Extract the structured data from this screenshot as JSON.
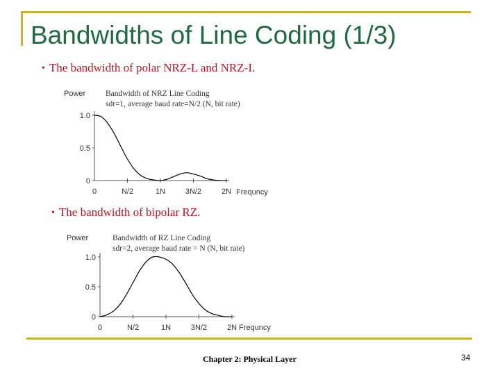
{
  "slide": {
    "title": "Bandwidths of Line Coding (1/3)",
    "bullet1": "The bandwidth of polar NRZ-L and NRZ-I.",
    "bullet2": "The bandwidth of bipolar RZ.",
    "footer": "Chapter 2: Physical Layer",
    "page_number": "34",
    "accent_color": "#c9b037",
    "title_color": "#1f6b3f",
    "bullet_color": "#c0141b"
  },
  "chart_data": [
    {
      "type": "line",
      "title": "Bandwidth of NRZ Line Coding",
      "subtitle": "sdr=1, average baud rate=N/2 (N, bit rate)",
      "ylabel": "Power",
      "xlabel": "Frequncy",
      "x_ticks": [
        "0",
        "N/2",
        "1N",
        "3N/2",
        "2N"
      ],
      "y_ticks": [
        "0",
        "0.5",
        "1.0"
      ],
      "xlim": [
        0,
        2
      ],
      "ylim": [
        0,
        1
      ],
      "x": [
        0,
        0.1,
        0.2,
        0.3,
        0.4,
        0.5,
        0.6,
        0.7,
        0.8,
        0.9,
        1.0,
        1.1,
        1.2,
        1.3,
        1.4,
        1.5,
        1.6,
        1.7,
        1.8,
        1.9,
        2.0
      ],
      "y": [
        1.0,
        0.98,
        0.88,
        0.72,
        0.52,
        0.33,
        0.18,
        0.08,
        0.03,
        0.01,
        0.0,
        0.02,
        0.06,
        0.1,
        0.12,
        0.1,
        0.07,
        0.03,
        0.01,
        0.0,
        0.0
      ]
    },
    {
      "type": "line",
      "title": "Bandwidth of RZ Line Coding",
      "subtitle": "sdr=2, average baud rate = N (N, bit rate)",
      "ylabel": "Power",
      "xlabel": "Frequncy",
      "x_ticks": [
        "0",
        "N/2",
        "1N",
        "3N/2",
        "2N"
      ],
      "y_ticks": [
        "0",
        "0.5",
        "1.0"
      ],
      "xlim": [
        0,
        2
      ],
      "ylim": [
        0,
        1
      ],
      "x": [
        0,
        0.1,
        0.2,
        0.3,
        0.4,
        0.5,
        0.6,
        0.7,
        0.8,
        0.9,
        1.0,
        1.1,
        1.2,
        1.3,
        1.4,
        1.5,
        1.6,
        1.7,
        1.8,
        1.9,
        2.0
      ],
      "y": [
        0.0,
        0.03,
        0.09,
        0.2,
        0.37,
        0.57,
        0.77,
        0.92,
        1.0,
        1.0,
        0.96,
        0.88,
        0.74,
        0.56,
        0.37,
        0.22,
        0.11,
        0.05,
        0.02,
        0.0,
        0.0
      ]
    }
  ]
}
